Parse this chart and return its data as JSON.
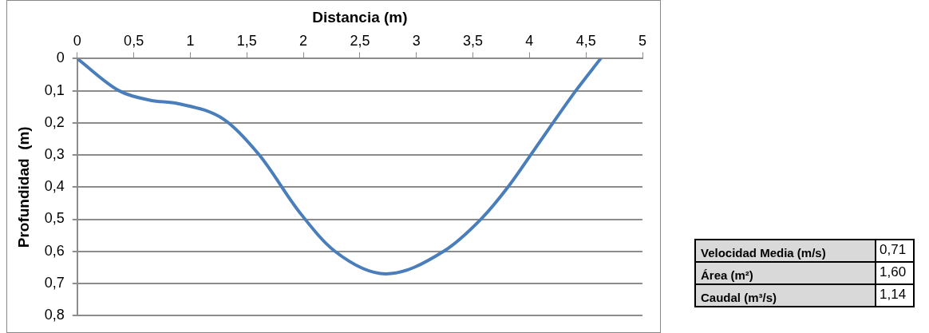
{
  "chart_data": {
    "type": "line",
    "xlabel": "Distancia (m)",
    "ylabel": "Profundidad  (m)",
    "x": [
      0,
      0.37,
      0.65,
      0.89,
      1.3,
      1.61,
      1.97,
      2.28,
      2.73,
      3.24,
      3.57,
      3.81,
      4.05,
      4.41,
      4.63
    ],
    "series": [
      {
        "color": "#4a7ebb",
        "values": [
          0,
          0.1,
          0.13,
          0.14,
          0.19,
          0.3,
          0.48,
          0.6,
          0.67,
          0.6,
          0.5,
          0.4,
          0.28,
          0.1,
          0
        ]
      }
    ],
    "xlim": [
      0,
      5
    ],
    "xticks": [
      0,
      {
        "value": 0.5,
        "label": "0,5"
      },
      1,
      {
        "value": 1.5,
        "label": "1,5"
      },
      2,
      {
        "value": 2.5,
        "label": "2,5"
      },
      3,
      {
        "value": 3.5,
        "label": "3,5"
      },
      4,
      {
        "value": 4.5,
        "label": "4,5"
      },
      5
    ],
    "ylim": [
      0.8,
      0
    ],
    "yticks": [
      0,
      {
        "value": 0.1,
        "label": "0,1"
      },
      {
        "value": 0.2,
        "label": "0,2"
      },
      {
        "value": 0.3,
        "label": "0,3"
      },
      {
        "value": 0.4,
        "label": "0,4"
      },
      {
        "value": 0.5,
        "label": "0,5"
      },
      {
        "value": 0.6,
        "label": "0,6"
      },
      {
        "value": 0.7,
        "label": "0,7"
      },
      {
        "value": 0.8,
        "label": "0,8"
      }
    ],
    "grid": "y",
    "legend": false,
    "marker": "none",
    "line_style": "solid",
    "annotations": [
      "Velocidad Media (m/s)",
      "0,71",
      "Área (m²)",
      "1,60",
      "Caudal (m³/s)",
      "1,14"
    ]
  }
}
